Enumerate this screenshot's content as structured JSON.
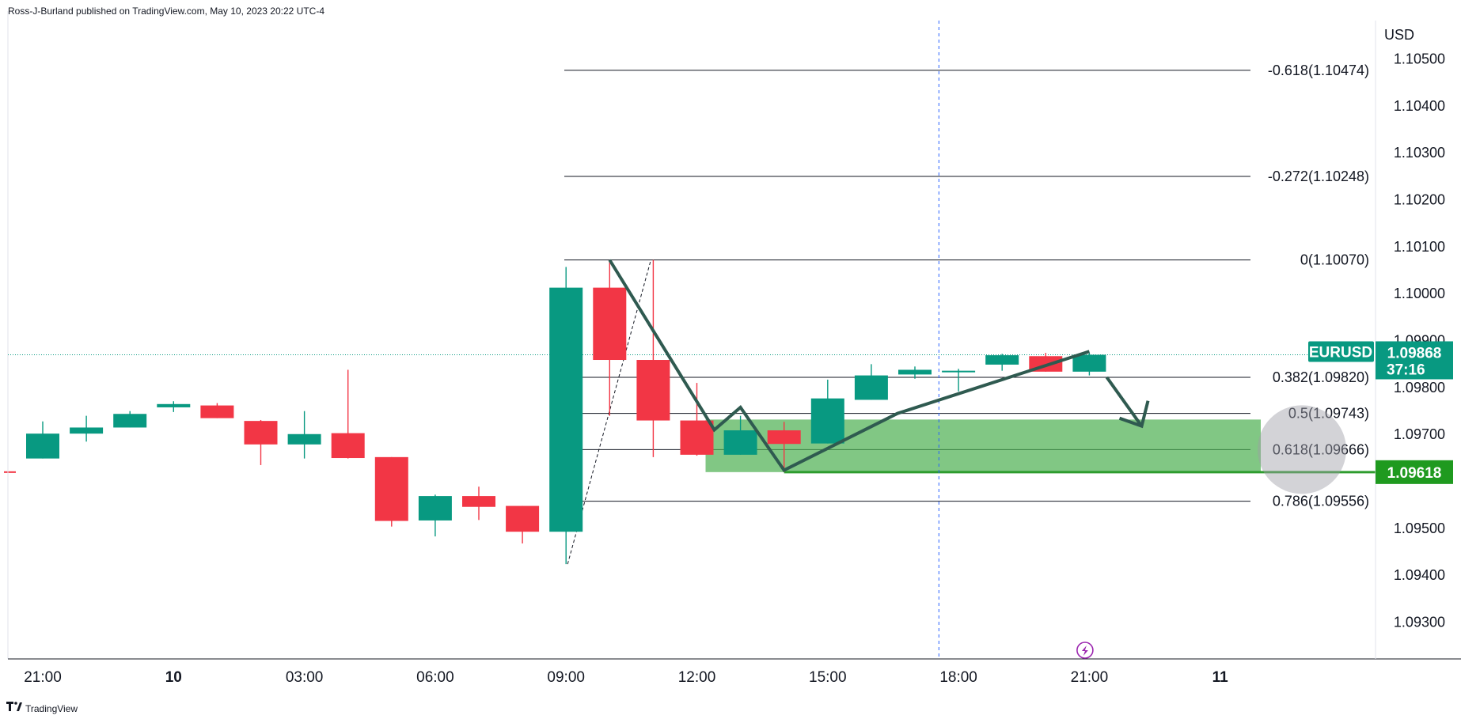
{
  "header": {
    "published_by": "Ross-J-Burland published on TradingView.com, May 10, 2023 20:22 UTC-4"
  },
  "footer": {
    "brand": "TradingView",
    "logo_icon": "tradingview-logo-icon"
  },
  "colors": {
    "up": "#089981",
    "down": "#f23645",
    "zone": "#4caf50",
    "zone_line": "#2e9c2e",
    "pattern": "#2f5a50",
    "badge_green": "#089981",
    "badge_zone": "#1f9a1f",
    "grid_text": "#131722"
  },
  "chart_data": {
    "type": "candlestick",
    "symbol": "EURUSD",
    "currency": "USD",
    "price_axis": {
      "min": 1.0922,
      "max": 1.1058,
      "ticks": [
        "1.10500",
        "1.10400",
        "1.10300",
        "1.10200",
        "1.10100",
        "1.10000",
        "1.09900",
        "1.09800",
        "1.09700",
        "1.09500",
        "1.09400",
        "1.09300"
      ]
    },
    "time_axis": {
      "ticks": [
        {
          "label": "21:00",
          "bar": 0,
          "bold": false
        },
        {
          "label": "10",
          "bar": 3,
          "bold": true
        },
        {
          "label": "03:00",
          "bar": 6,
          "bold": false
        },
        {
          "label": "06:00",
          "bar": 9,
          "bold": false
        },
        {
          "label": "09:00",
          "bar": 12,
          "bold": false
        },
        {
          "label": "12:00",
          "bar": 15,
          "bold": false
        },
        {
          "label": "15:00",
          "bar": 18,
          "bold": false
        },
        {
          "label": "18:00",
          "bar": 21,
          "bold": false
        },
        {
          "label": "21:00",
          "bar": 24,
          "bold": false
        },
        {
          "label": "11",
          "bar": 27,
          "bold": true
        }
      ]
    },
    "candles": [
      {
        "o": 1.09647,
        "h": 1.09726,
        "l": 1.09647,
        "c": 1.097
      },
      {
        "o": 1.097,
        "h": 1.09738,
        "l": 1.09683,
        "c": 1.09713
      },
      {
        "o": 1.09713,
        "h": 1.09748,
        "l": 1.09713,
        "c": 1.09742
      },
      {
        "o": 1.09756,
        "h": 1.09769,
        "l": 1.09746,
        "c": 1.09763
      },
      {
        "o": 1.0976,
        "h": 1.09765,
        "l": 1.09733,
        "c": 1.09733
      },
      {
        "o": 1.09727,
        "h": 1.09729,
        "l": 1.09633,
        "c": 1.09677
      },
      {
        "o": 1.09677,
        "h": 1.09748,
        "l": 1.09647,
        "c": 1.09699
      },
      {
        "o": 1.09701,
        "h": 1.09836,
        "l": 1.09647,
        "c": 1.09648
      },
      {
        "o": 1.0965,
        "h": 1.0965,
        "l": 1.09502,
        "c": 1.09514
      },
      {
        "o": 1.09515,
        "h": 1.0957,
        "l": 1.09481,
        "c": 1.09567
      },
      {
        "o": 1.09567,
        "h": 1.09587,
        "l": 1.09516,
        "c": 1.09544
      },
      {
        "o": 1.09546,
        "h": 1.09546,
        "l": 1.09466,
        "c": 1.09491
      },
      {
        "o": 1.09491,
        "h": 1.10055,
        "l": 1.09422,
        "c": 1.10011
      },
      {
        "o": 1.10011,
        "h": 1.10066,
        "l": 1.09738,
        "c": 1.09857
      },
      {
        "o": 1.09857,
        "h": 1.1007,
        "l": 1.0965,
        "c": 1.09728
      },
      {
        "o": 1.09728,
        "h": 1.09808,
        "l": 1.09653,
        "c": 1.09655
      },
      {
        "o": 1.09655,
        "h": 1.09738,
        "l": 1.09655,
        "c": 1.09707
      },
      {
        "o": 1.09707,
        "h": 1.09725,
        "l": 1.09618,
        "c": 1.09678
      },
      {
        "o": 1.09679,
        "h": 1.09815,
        "l": 1.09679,
        "c": 1.09775
      },
      {
        "o": 1.09772,
        "h": 1.09848,
        "l": 1.09772,
        "c": 1.09824
      },
      {
        "o": 1.09826,
        "h": 1.09843,
        "l": 1.09817,
        "c": 1.09836
      },
      {
        "o": 1.09834,
        "h": 1.09838,
        "l": 1.0979,
        "c": 1.09834
      },
      {
        "o": 1.09847,
        "h": 1.0987,
        "l": 1.09834,
        "c": 1.09867
      },
      {
        "o": 1.09865,
        "h": 1.09872,
        "l": 1.09832,
        "c": 1.09832
      },
      {
        "o": 1.09832,
        "h": 1.09872,
        "l": 1.09824,
        "c": 1.09868
      }
    ],
    "fibonacci": [
      {
        "label": "-0.618(1.10474)",
        "price": 1.10474
      },
      {
        "label": "-0.272(1.10248)",
        "price": 1.10248
      },
      {
        "label": "0(1.10070)",
        "price": 1.1007
      },
      {
        "label": "0.382(1.09820)",
        "price": 1.0982
      },
      {
        "label": "0.5(1.09743)",
        "price": 1.09743
      },
      {
        "label": "0.618(1.09666)",
        "price": 1.09666
      },
      {
        "label": "0.786(1.09556)",
        "price": 1.09556
      }
    ],
    "support_zone": {
      "top": 1.0973,
      "bottom": 1.09618
    },
    "support_line_price": 1.09618,
    "current_price_line": 1.09868,
    "fib_anchor_line": [
      {
        "bar": 12,
        "price": 1.09422
      },
      {
        "bar": 14,
        "price": 1.1007
      }
    ],
    "pattern_path": [
      {
        "bar": 13.0,
        "price": 1.1007
      },
      {
        "bar": 15.4,
        "price": 1.09708
      },
      {
        "bar": 16.0,
        "price": 1.09756
      },
      {
        "bar": 17.0,
        "price": 1.09622
      },
      {
        "bar": 19.6,
        "price": 1.09743
      },
      {
        "bar": 24.0,
        "price": 1.09875
      }
    ],
    "projection_arrow": [
      {
        "bar": 24.4,
        "price": 1.0982
      },
      {
        "bar": 25.2,
        "price": 1.09716
      }
    ],
    "vertical_marker_bar": 20.55,
    "price_badges": [
      {
        "symbol": "EURUSD",
        "price": "1.09868",
        "countdown": "37:16",
        "level": 1.09868
      },
      {
        "price": "1.09618",
        "level": 1.09618
      }
    ],
    "bolt_icon": "lightning-bolt-icon"
  }
}
